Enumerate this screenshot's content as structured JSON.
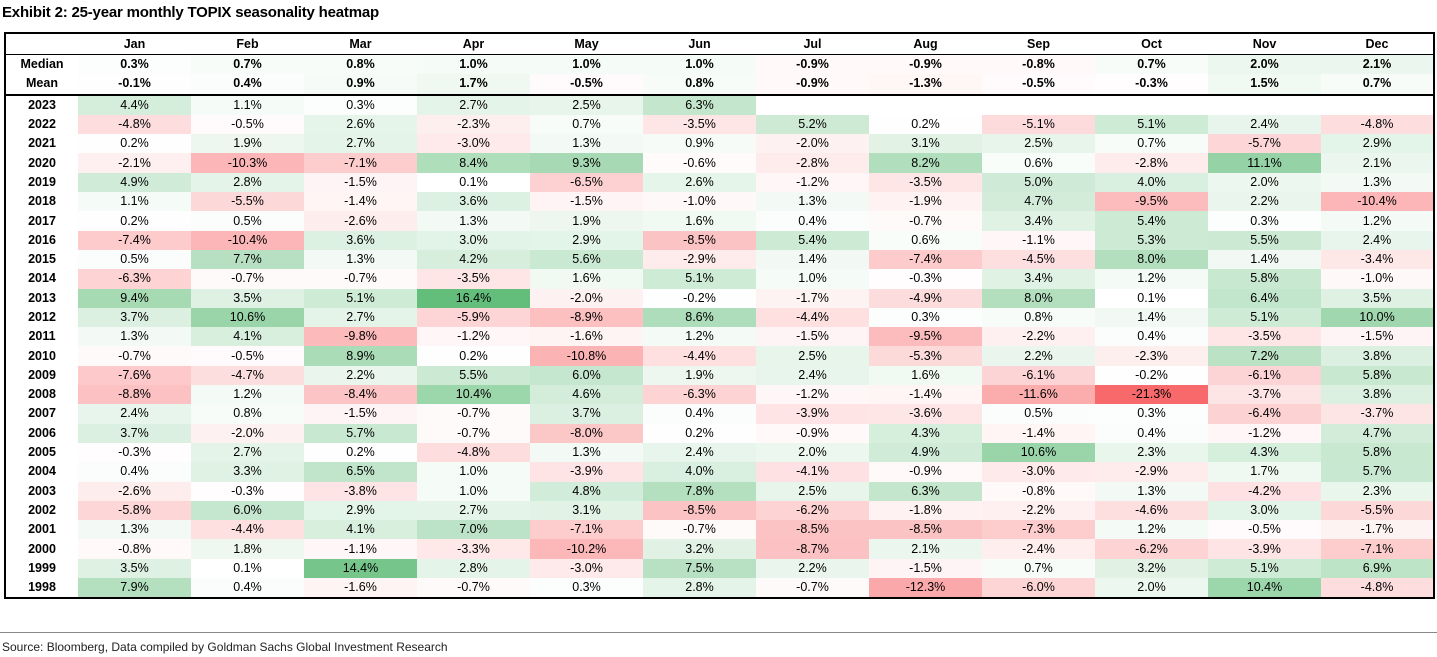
{
  "title": "Exhibit 2: 25-year monthly TOPIX seasonality heatmap",
  "source": "Source: Bloomberg, Data compiled by Goldman Sachs Global Investment Research",
  "colors": {
    "positive": "#63be7b",
    "negative": "#f8696b",
    "neutral": "#ffffff"
  },
  "chart_data": {
    "type": "heatmap",
    "title": "Exhibit 2: 25-year monthly TOPIX seasonality heatmap",
    "columns": [
      "Jan",
      "Feb",
      "Mar",
      "Apr",
      "May",
      "Jun",
      "Jul",
      "Aug",
      "Sep",
      "Oct",
      "Nov",
      "Dec"
    ],
    "summary": [
      {
        "label": "Median",
        "values": [
          "0.3%",
          "0.7%",
          "0.8%",
          "1.0%",
          "1.0%",
          "1.0%",
          "-0.9%",
          "-0.9%",
          "-0.8%",
          "0.7%",
          "2.0%",
          "2.1%"
        ]
      },
      {
        "label": "Mean",
        "values": [
          "-0.1%",
          "0.4%",
          "0.9%",
          "1.7%",
          "-0.5%",
          "0.8%",
          "-0.9%",
          "-1.3%",
          "-0.5%",
          "-0.3%",
          "1.5%",
          "0.7%"
        ]
      }
    ],
    "rows": [
      {
        "label": "2023",
        "values": [
          "4.4%",
          "1.1%",
          "0.3%",
          "2.7%",
          "2.5%",
          "6.3%",
          "",
          "",
          "",
          "",
          "",
          ""
        ]
      },
      {
        "label": "2022",
        "values": [
          "-4.8%",
          "-0.5%",
          "2.6%",
          "-2.3%",
          "0.7%",
          "-3.5%",
          "5.2%",
          "0.2%",
          "-5.1%",
          "5.1%",
          "2.4%",
          "-4.8%"
        ]
      },
      {
        "label": "2021",
        "values": [
          "0.2%",
          "1.9%",
          "2.7%",
          "-3.0%",
          "1.3%",
          "0.9%",
          "-2.0%",
          "3.1%",
          "2.5%",
          "0.7%",
          "-5.7%",
          "2.9%"
        ]
      },
      {
        "label": "2020",
        "values": [
          "-2.1%",
          "-10.3%",
          "-7.1%",
          "8.4%",
          "9.3%",
          "-0.6%",
          "-2.8%",
          "8.2%",
          "0.6%",
          "-2.8%",
          "11.1%",
          "2.1%"
        ]
      },
      {
        "label": "2019",
        "values": [
          "4.9%",
          "2.8%",
          "-1.5%",
          "0.1%",
          "-6.5%",
          "2.6%",
          "-1.2%",
          "-3.5%",
          "5.0%",
          "4.0%",
          "2.0%",
          "1.3%"
        ]
      },
      {
        "label": "2018",
        "values": [
          "1.1%",
          "-5.5%",
          "-1.4%",
          "3.6%",
          "-1.5%",
          "-1.0%",
          "1.3%",
          "-1.9%",
          "4.7%",
          "-9.5%",
          "2.2%",
          "-10.4%"
        ]
      },
      {
        "label": "2017",
        "values": [
          "0.2%",
          "0.5%",
          "-2.6%",
          "1.3%",
          "1.9%",
          "1.6%",
          "0.4%",
          "-0.7%",
          "3.4%",
          "5.4%",
          "0.3%",
          "1.2%"
        ]
      },
      {
        "label": "2016",
        "values": [
          "-7.4%",
          "-10.4%",
          "3.6%",
          "3.0%",
          "2.9%",
          "-8.5%",
          "5.4%",
          "0.6%",
          "-1.1%",
          "5.3%",
          "5.5%",
          "2.4%"
        ]
      },
      {
        "label": "2015",
        "values": [
          "0.5%",
          "7.7%",
          "1.3%",
          "4.2%",
          "5.6%",
          "-2.9%",
          "1.4%",
          "-7.4%",
          "-4.5%",
          "8.0%",
          "1.4%",
          "-3.4%"
        ]
      },
      {
        "label": "2014",
        "values": [
          "-6.3%",
          "-0.7%",
          "-0.7%",
          "-3.5%",
          "1.6%",
          "5.1%",
          "1.0%",
          "-0.3%",
          "3.4%",
          "1.2%",
          "5.8%",
          "-1.0%"
        ]
      },
      {
        "label": "2013",
        "values": [
          "9.4%",
          "3.5%",
          "5.1%",
          "16.4%",
          "-2.0%",
          "-0.2%",
          "-1.7%",
          "-4.9%",
          "8.0%",
          "0.1%",
          "6.4%",
          "3.5%"
        ]
      },
      {
        "label": "2012",
        "values": [
          "3.7%",
          "10.6%",
          "2.7%",
          "-5.9%",
          "-8.9%",
          "8.6%",
          "-4.4%",
          "0.3%",
          "0.8%",
          "1.4%",
          "5.1%",
          "10.0%"
        ]
      },
      {
        "label": "2011",
        "values": [
          "1.3%",
          "4.1%",
          "-9.8%",
          "-1.2%",
          "-1.6%",
          "1.2%",
          "-1.5%",
          "-9.5%",
          "-2.2%",
          "0.4%",
          "-3.5%",
          "-1.5%"
        ]
      },
      {
        "label": "2010",
        "values": [
          "-0.7%",
          "-0.5%",
          "8.9%",
          "0.2%",
          "-10.8%",
          "-4.4%",
          "2.5%",
          "-5.3%",
          "2.2%",
          "-2.3%",
          "7.2%",
          "3.8%"
        ]
      },
      {
        "label": "2009",
        "values": [
          "-7.6%",
          "-4.7%",
          "2.2%",
          "5.5%",
          "6.0%",
          "1.9%",
          "2.4%",
          "1.6%",
          "-6.1%",
          "-0.2%",
          "-6.1%",
          "5.8%"
        ]
      },
      {
        "label": "2008",
        "values": [
          "-8.8%",
          "1.2%",
          "-8.4%",
          "10.4%",
          "4.6%",
          "-6.3%",
          "-1.2%",
          "-1.4%",
          "-11.6%",
          "-21.3%",
          "-3.7%",
          "3.8%"
        ]
      },
      {
        "label": "2007",
        "values": [
          "2.4%",
          "0.8%",
          "-1.5%",
          "-0.7%",
          "3.7%",
          "0.4%",
          "-3.9%",
          "-3.6%",
          "0.5%",
          "0.3%",
          "-6.4%",
          "-3.7%"
        ]
      },
      {
        "label": "2006",
        "values": [
          "3.7%",
          "-2.0%",
          "5.7%",
          "-0.7%",
          "-8.0%",
          "0.2%",
          "-0.9%",
          "4.3%",
          "-1.4%",
          "0.4%",
          "-1.2%",
          "4.7%"
        ]
      },
      {
        "label": "2005",
        "values": [
          "-0.3%",
          "2.7%",
          "0.2%",
          "-4.8%",
          "1.3%",
          "2.4%",
          "2.0%",
          "4.9%",
          "10.6%",
          "2.3%",
          "4.3%",
          "5.8%"
        ]
      },
      {
        "label": "2004",
        "values": [
          "0.4%",
          "3.3%",
          "6.5%",
          "1.0%",
          "-3.9%",
          "4.0%",
          "-4.1%",
          "-0.9%",
          "-3.0%",
          "-2.9%",
          "1.7%",
          "5.7%"
        ]
      },
      {
        "label": "2003",
        "values": [
          "-2.6%",
          "-0.3%",
          "-3.8%",
          "1.0%",
          "4.8%",
          "7.8%",
          "2.5%",
          "6.3%",
          "-0.8%",
          "1.3%",
          "-4.2%",
          "2.3%"
        ]
      },
      {
        "label": "2002",
        "values": [
          "-5.8%",
          "6.0%",
          "2.9%",
          "2.7%",
          "3.1%",
          "-8.5%",
          "-6.2%",
          "-1.8%",
          "-2.2%",
          "-4.6%",
          "3.0%",
          "-5.5%"
        ]
      },
      {
        "label": "2001",
        "values": [
          "1.3%",
          "-4.4%",
          "4.1%",
          "7.0%",
          "-7.1%",
          "-0.7%",
          "-8.5%",
          "-8.5%",
          "-7.3%",
          "1.2%",
          "-0.5%",
          "-1.7%"
        ]
      },
      {
        "label": "2000",
        "values": [
          "-0.8%",
          "1.8%",
          "-1.1%",
          "-3.3%",
          "-10.2%",
          "3.2%",
          "-8.7%",
          "2.1%",
          "-2.4%",
          "-6.2%",
          "-3.9%",
          "-7.1%"
        ]
      },
      {
        "label": "1999",
        "values": [
          "3.5%",
          "0.1%",
          "14.4%",
          "2.8%",
          "-3.0%",
          "7.5%",
          "2.2%",
          "-1.5%",
          "0.7%",
          "3.2%",
          "5.1%",
          "6.9%"
        ]
      },
      {
        "label": "1998",
        "values": [
          "7.9%",
          "0.4%",
          "-1.6%",
          "-0.7%",
          "0.3%",
          "2.8%",
          "-0.7%",
          "-12.3%",
          "-6.0%",
          "2.0%",
          "10.4%",
          "-4.8%"
        ]
      }
    ]
  }
}
